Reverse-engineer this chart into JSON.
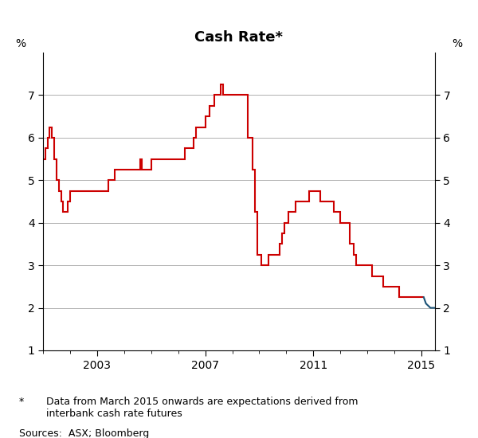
{
  "title": "Cash Rate*",
  "ylabel_left": "%",
  "ylabel_right": "%",
  "ylim": [
    1,
    8
  ],
  "yticks": [
    1,
    2,
    3,
    4,
    5,
    6,
    7
  ],
  "xlim_start": 2001.0,
  "xlim_end": 2015.5,
  "xtick_years": [
    2003,
    2007,
    2011,
    2015
  ],
  "footnote_star": "*",
  "footnote_text": "    Data from March 2015 onwards are expectations derived from\n    interbank cash rate futures",
  "sources": "Sources:  ASX; Bloomberg",
  "line_color_red": "#cc0000",
  "line_color_blue": "#1a5276",
  "red_series": [
    [
      2001.0,
      5.5
    ],
    [
      2001.083,
      5.5
    ],
    [
      2001.083,
      5.75
    ],
    [
      2001.167,
      5.75
    ],
    [
      2001.167,
      6.0
    ],
    [
      2001.25,
      6.0
    ],
    [
      2001.25,
      6.25
    ],
    [
      2001.333,
      6.25
    ],
    [
      2001.333,
      6.0
    ],
    [
      2001.417,
      6.0
    ],
    [
      2001.417,
      5.5
    ],
    [
      2001.5,
      5.5
    ],
    [
      2001.5,
      5.0
    ],
    [
      2001.583,
      5.0
    ],
    [
      2001.583,
      4.75
    ],
    [
      2001.667,
      4.75
    ],
    [
      2001.667,
      4.5
    ],
    [
      2001.75,
      4.5
    ],
    [
      2001.75,
      4.25
    ],
    [
      2001.917,
      4.25
    ],
    [
      2001.917,
      4.5
    ],
    [
      2002.0,
      4.5
    ],
    [
      2002.0,
      4.75
    ],
    [
      2002.083,
      4.75
    ],
    [
      2002.083,
      4.75
    ],
    [
      2002.333,
      4.75
    ],
    [
      2002.333,
      4.75
    ],
    [
      2002.917,
      4.75
    ],
    [
      2002.917,
      4.75
    ],
    [
      2003.083,
      4.75
    ],
    [
      2003.083,
      4.75
    ],
    [
      2003.417,
      4.75
    ],
    [
      2003.417,
      5.0
    ],
    [
      2003.583,
      5.0
    ],
    [
      2003.583,
      5.0
    ],
    [
      2003.667,
      5.0
    ],
    [
      2003.667,
      5.25
    ],
    [
      2003.75,
      5.25
    ],
    [
      2003.75,
      5.25
    ],
    [
      2004.167,
      5.25
    ],
    [
      2004.167,
      5.25
    ],
    [
      2004.583,
      5.25
    ],
    [
      2004.583,
      5.5
    ],
    [
      2004.667,
      5.5
    ],
    [
      2004.667,
      5.25
    ],
    [
      2004.75,
      5.25
    ],
    [
      2004.75,
      5.25
    ],
    [
      2005.0,
      5.25
    ],
    [
      2005.0,
      5.5
    ],
    [
      2005.083,
      5.5
    ],
    [
      2005.083,
      5.5
    ],
    [
      2005.583,
      5.5
    ],
    [
      2005.583,
      5.5
    ],
    [
      2006.25,
      5.5
    ],
    [
      2006.25,
      5.75
    ],
    [
      2006.583,
      5.75
    ],
    [
      2006.583,
      6.0
    ],
    [
      2006.667,
      6.0
    ],
    [
      2006.667,
      6.25
    ],
    [
      2007.0,
      6.25
    ],
    [
      2007.0,
      6.5
    ],
    [
      2007.167,
      6.5
    ],
    [
      2007.167,
      6.75
    ],
    [
      2007.333,
      6.75
    ],
    [
      2007.333,
      7.0
    ],
    [
      2007.583,
      7.0
    ],
    [
      2007.583,
      7.25
    ],
    [
      2007.667,
      7.25
    ],
    [
      2007.667,
      7.0
    ],
    [
      2008.583,
      7.0
    ],
    [
      2008.583,
      6.0
    ],
    [
      2008.75,
      6.0
    ],
    [
      2008.75,
      5.25
    ],
    [
      2008.833,
      5.25
    ],
    [
      2008.833,
      4.25
    ],
    [
      2008.917,
      4.25
    ],
    [
      2008.917,
      3.25
    ],
    [
      2009.0,
      3.25
    ],
    [
      2009.083,
      3.25
    ],
    [
      2009.083,
      3.0
    ],
    [
      2009.167,
      3.0
    ],
    [
      2009.333,
      3.0
    ],
    [
      2009.333,
      3.25
    ],
    [
      2009.75,
      3.25
    ],
    [
      2009.75,
      3.5
    ],
    [
      2009.833,
      3.5
    ],
    [
      2009.833,
      3.75
    ],
    [
      2009.917,
      3.75
    ],
    [
      2009.917,
      4.0
    ],
    [
      2010.0,
      4.0
    ],
    [
      2010.083,
      4.0
    ],
    [
      2010.083,
      4.25
    ],
    [
      2010.333,
      4.25
    ],
    [
      2010.333,
      4.5
    ],
    [
      2010.417,
      4.5
    ],
    [
      2010.833,
      4.5
    ],
    [
      2010.833,
      4.75
    ],
    [
      2010.917,
      4.75
    ],
    [
      2011.25,
      4.75
    ],
    [
      2011.25,
      4.5
    ],
    [
      2011.75,
      4.5
    ],
    [
      2011.75,
      4.25
    ],
    [
      2011.917,
      4.25
    ],
    [
      2012.0,
      4.25
    ],
    [
      2012.0,
      4.0
    ],
    [
      2012.333,
      4.0
    ],
    [
      2012.333,
      3.5
    ],
    [
      2012.5,
      3.5
    ],
    [
      2012.5,
      3.25
    ],
    [
      2012.583,
      3.25
    ],
    [
      2012.583,
      3.0
    ],
    [
      2012.833,
      3.0
    ],
    [
      2013.167,
      3.0
    ],
    [
      2013.167,
      2.75
    ],
    [
      2013.583,
      2.75
    ],
    [
      2013.583,
      2.5
    ],
    [
      2013.667,
      2.5
    ],
    [
      2014.167,
      2.5
    ],
    [
      2014.167,
      2.25
    ],
    [
      2015.083,
      2.25
    ]
  ],
  "blue_series": [
    [
      2015.083,
      2.25
    ],
    [
      2015.167,
      2.1
    ],
    [
      2015.25,
      2.05
    ],
    [
      2015.333,
      2.0
    ],
    [
      2015.417,
      2.0
    ],
    [
      2015.5,
      2.0
    ]
  ]
}
